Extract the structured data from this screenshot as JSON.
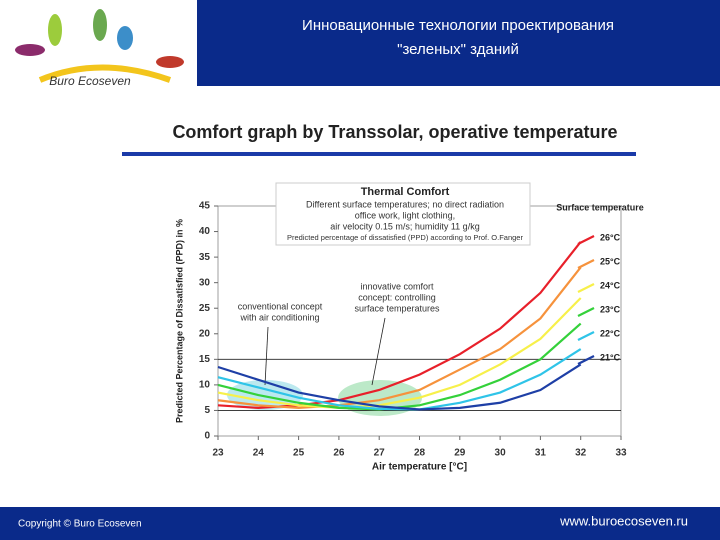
{
  "header": {
    "title_line1": "Инновационные технологии проектирования",
    "title_line2": "\"зеленых\" зданий",
    "logo": "Buro Ecoseven"
  },
  "footer": {
    "copyright": "Copyright © Buro Ecoseven",
    "website": "www.buroecoseven.ru"
  },
  "chart_data": {
    "type": "line",
    "title": "Comfort graph by Transsolar, operative temperature",
    "box_title": "Thermal Comfort",
    "box_lines": [
      "Different surface temperatures; no direct radiation",
      "office work, light clothing,",
      "air velocity 0.15 m/s; humidity 11 g/kg",
      "Predicted percentage of dissatisfied (PPD) according to Prof. O.Fanger"
    ],
    "annotations": [
      [
        "conventional concept",
        "with air conditioning"
      ],
      [
        "innovative comfort",
        "concept: controlling",
        "surface temperatures"
      ]
    ],
    "xlabel": "Air temperature [°C]",
    "ylabel": "Predicted Percentage of Dissatisfied (PPD) in %",
    "legend_title": "Surface temperature",
    "x": [
      23,
      24,
      25,
      26,
      27,
      28,
      29,
      30,
      31,
      32
    ],
    "xlim": [
      23,
      33
    ],
    "xticks": [
      23,
      24,
      25,
      26,
      27,
      28,
      29,
      30,
      31,
      32,
      33
    ],
    "ylim": [
      0,
      45
    ],
    "yticks": [
      0,
      5,
      10,
      15,
      20,
      25,
      30,
      35,
      40,
      45
    ],
    "hlines": [
      5,
      15
    ],
    "series": [
      {
        "name": "26°C",
        "color": "#e8202a",
        "values": [
          6,
          5.5,
          6,
          7,
          9,
          12,
          16,
          21,
          28,
          38
        ]
      },
      {
        "name": "25°C",
        "color": "#f6923c",
        "values": [
          7,
          6,
          5.5,
          6,
          7,
          9,
          13,
          17,
          23,
          33
        ]
      },
      {
        "name": "24°C",
        "color": "#f7f04a",
        "values": [
          8.5,
          7,
          6,
          5.5,
          6,
          7.5,
          10,
          14,
          19,
          27
        ]
      },
      {
        "name": "23°C",
        "color": "#34d13a",
        "values": [
          10,
          8,
          6.5,
          5.5,
          5.2,
          6,
          8,
          11,
          15,
          22
        ]
      },
      {
        "name": "22°C",
        "color": "#2fc4e8",
        "values": [
          11.5,
          9.5,
          7.5,
          6,
          5.3,
          5.2,
          6.5,
          8.5,
          12,
          17
        ]
      },
      {
        "name": "21°C",
        "color": "#1e3fa6",
        "values": [
          13.5,
          11,
          8.5,
          7,
          5.8,
          5.2,
          5.5,
          6.5,
          9,
          14
        ]
      }
    ]
  }
}
